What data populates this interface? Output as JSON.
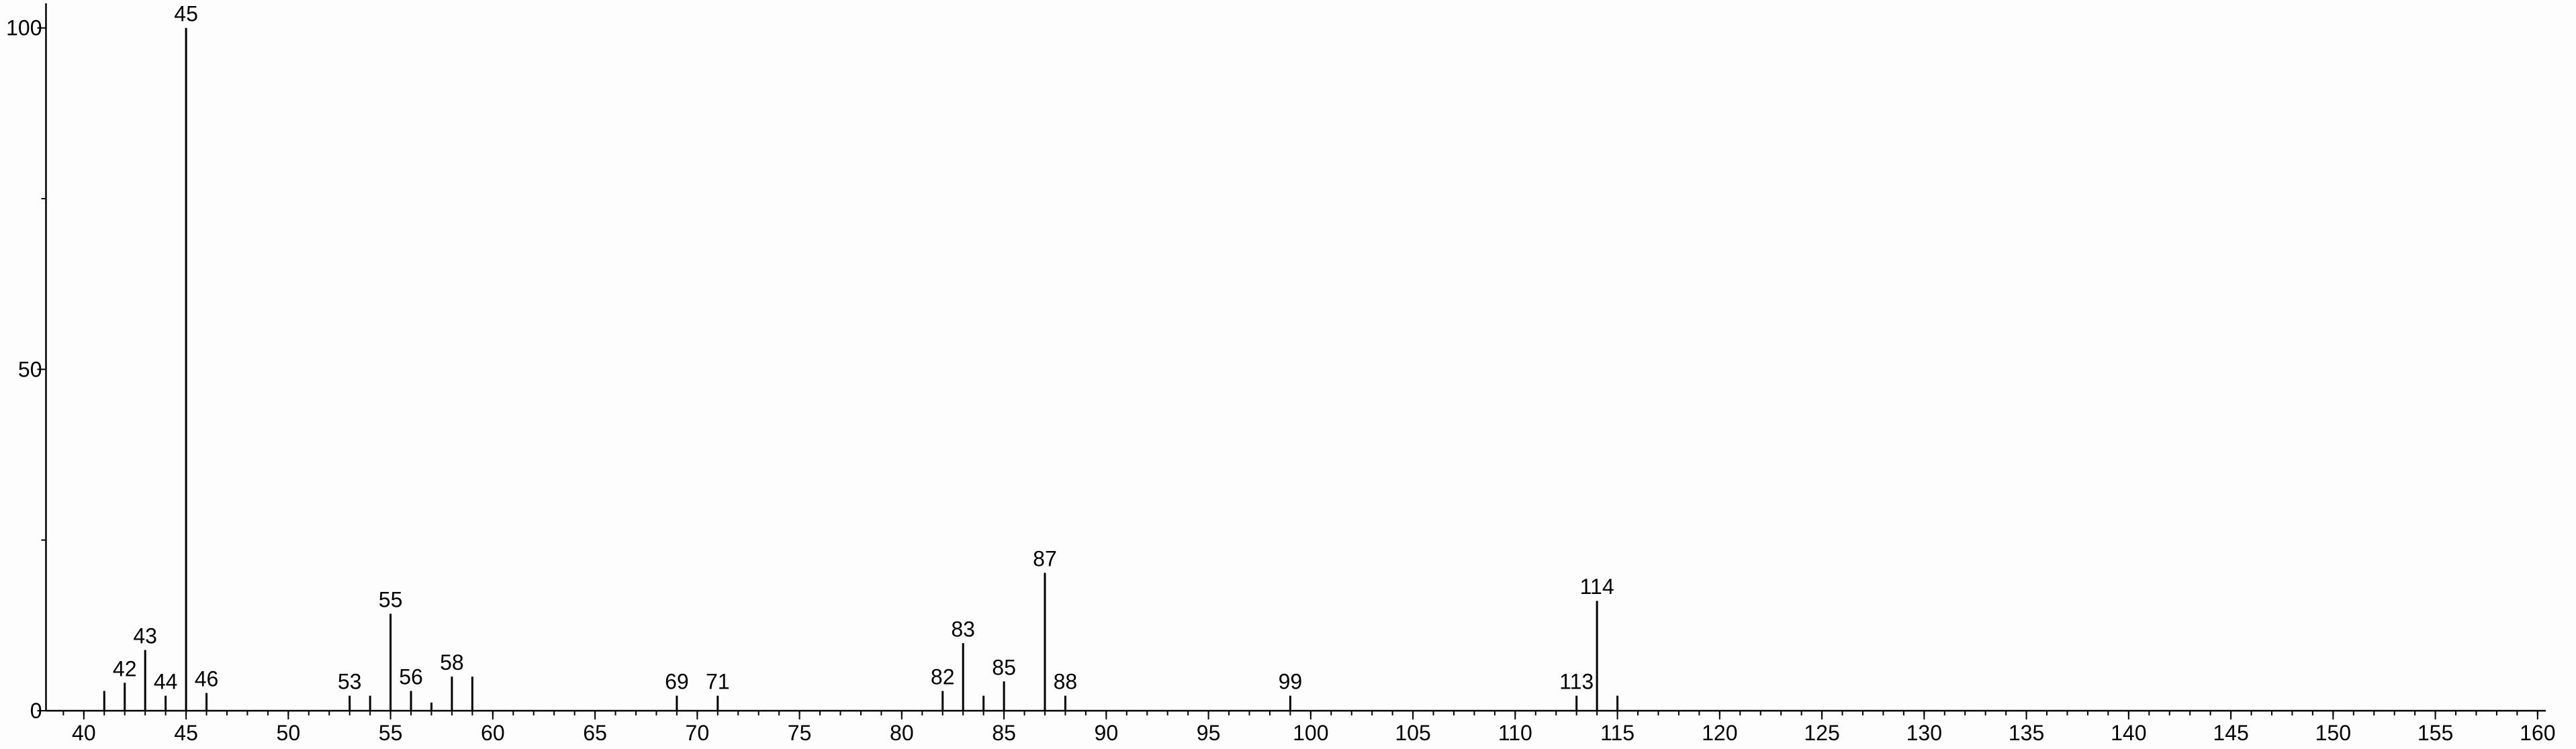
{
  "chart_data": {
    "type": "stem",
    "x": [
      41,
      42,
      43,
      44,
      45,
      46,
      53,
      54,
      55,
      56,
      57,
      58,
      59,
      69,
      71,
      82,
      83,
      84,
      85,
      87,
      88,
      99,
      113,
      114,
      115
    ],
    "values": [
      2.9,
      4.1,
      8.9,
      2.2,
      100,
      2.6,
      2.2,
      2.2,
      14.2,
      2.9,
      1.2,
      5.0,
      5.0,
      2.2,
      2.2,
      2.9,
      9.9,
      2.2,
      4.3,
      20.2,
      2.2,
      2.2,
      2.2,
      16.1,
      2.2
    ],
    "peak_labels": [
      null,
      42,
      43,
      44,
      45,
      46,
      53,
      null,
      55,
      56,
      null,
      58,
      null,
      69,
      71,
      82,
      83,
      null,
      85,
      87,
      88,
      99,
      113,
      114,
      null
    ],
    "color": "#000000",
    "xlim": [
      38.15,
      160.4
    ],
    "ylim": [
      0,
      103.6
    ],
    "xticks": [
      40,
      45,
      50,
      55,
      60,
      65,
      70,
      75,
      80,
      85,
      90,
      95,
      100,
      105,
      110,
      115,
      120,
      125,
      130,
      135,
      140,
      145,
      150,
      155,
      160
    ],
    "xminorticks": [
      39,
      40,
      41,
      42,
      43,
      44,
      45,
      46,
      47,
      48,
      49,
      50,
      51,
      52,
      53,
      54,
      55,
      56,
      57,
      58,
      59,
      60,
      61,
      62,
      63,
      64,
      65,
      66,
      67,
      68,
      69,
      70,
      71,
      72,
      73,
      74,
      75,
      76,
      77,
      78,
      79,
      80,
      81,
      82,
      83,
      84,
      85,
      86,
      87,
      88,
      89,
      90,
      91,
      92,
      93,
      94,
      95,
      96,
      97,
      98,
      99,
      100,
      101,
      102,
      103,
      104,
      105,
      106,
      107,
      108,
      109,
      110,
      111,
      112,
      113,
      114,
      115,
      116,
      117,
      118,
      119,
      120,
      121,
      122,
      123,
      124,
      125,
      126,
      127,
      128,
      129,
      130,
      131,
      132,
      133,
      134,
      135,
      136,
      137,
      138,
      139,
      140,
      141,
      142,
      143,
      144,
      145,
      146,
      147,
      148,
      149,
      150,
      151,
      152,
      153,
      154,
      155,
      156,
      157,
      158,
      159,
      160
    ],
    "yticks": [
      0,
      50,
      100
    ],
    "yminorticks": [
      25,
      75
    ]
  }
}
